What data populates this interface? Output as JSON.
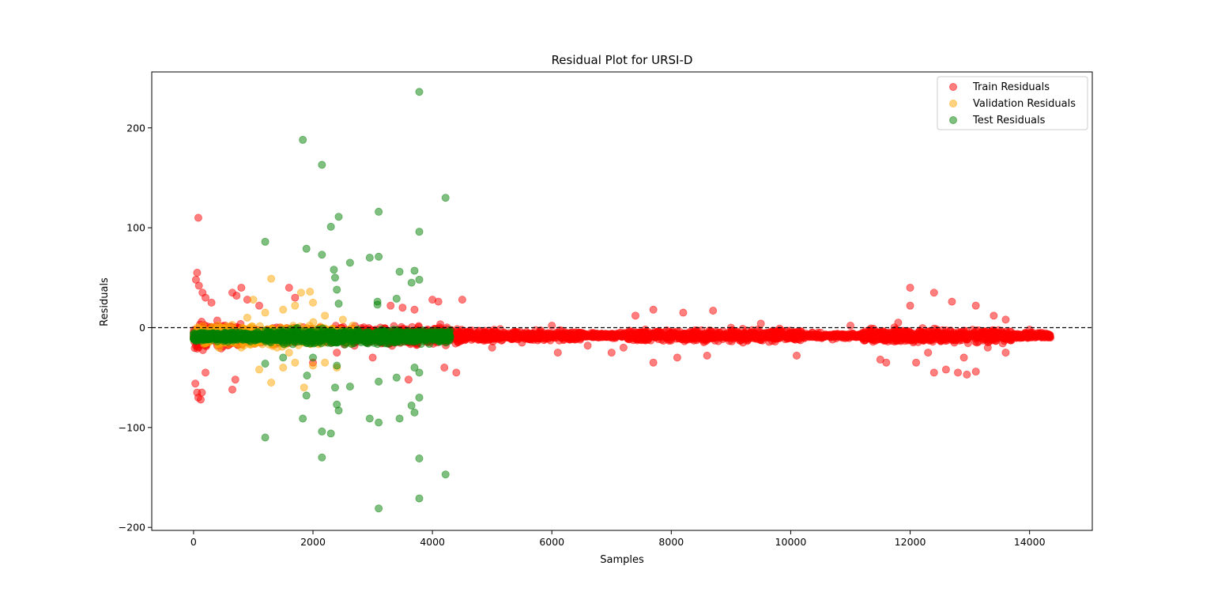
{
  "chart_data": {
    "type": "scatter",
    "title": "Residual Plot for URSI-D",
    "xlabel": "Samples",
    "ylabel": "Residuals",
    "xlim": [
      -700,
      15050
    ],
    "ylim": [
      -203,
      256
    ],
    "xticks": [
      0,
      2000,
      4000,
      6000,
      8000,
      10000,
      12000,
      14000
    ],
    "yticks": [
      -200,
      -100,
      0,
      100,
      200
    ],
    "xtick_labels": [
      "0",
      "2000",
      "4000",
      "6000",
      "8000",
      "10000",
      "12000",
      "14000"
    ],
    "ytick_labels": [
      "−200",
      "−100",
      "0",
      "100",
      "200"
    ],
    "reference_line": {
      "y": 0,
      "style": "dashed",
      "color": "#000000"
    },
    "grid": false,
    "legend": {
      "placement": "top-right",
      "entries": [
        "Train Residuals",
        "Validation Residuals",
        "Test Residuals"
      ]
    },
    "series": [
      {
        "name": "Train Residuals",
        "color": "#ff0000",
        "alpha": 0.5,
        "points": [
          [
            80,
            110
          ],
          [
            60,
            55
          ],
          [
            40,
            48
          ],
          [
            90,
            42
          ],
          [
            150,
            35
          ],
          [
            200,
            30
          ],
          [
            300,
            25
          ],
          [
            650,
            35
          ],
          [
            720,
            32
          ],
          [
            800,
            40
          ],
          [
            900,
            28
          ],
          [
            1100,
            22
          ],
          [
            1600,
            40
          ],
          [
            1700,
            30
          ],
          [
            3300,
            22
          ],
          [
            3500,
            20
          ],
          [
            3700,
            18
          ],
          [
            4000,
            28
          ],
          [
            4100,
            26
          ],
          [
            4500,
            28
          ],
          [
            7400,
            12
          ],
          [
            7700,
            18
          ],
          [
            8200,
            15
          ],
          [
            8700,
            17
          ],
          [
            12000,
            40
          ],
          [
            12400,
            35
          ],
          [
            12000,
            22
          ],
          [
            12700,
            26
          ],
          [
            13100,
            22
          ],
          [
            13400,
            12
          ],
          [
            13600,
            8
          ],
          [
            11800,
            5
          ],
          [
            11000,
            2
          ],
          [
            10500,
            -5
          ],
          [
            9500,
            4
          ],
          [
            9000,
            0
          ],
          [
            6100,
            -25
          ],
          [
            6600,
            -18
          ],
          [
            7000,
            -25
          ],
          [
            7700,
            -35
          ],
          [
            8100,
            -30
          ],
          [
            8600,
            -28
          ],
          [
            10100,
            -28
          ],
          [
            11500,
            -32
          ],
          [
            11600,
            -35
          ],
          [
            12100,
            -35
          ],
          [
            12400,
            -45
          ],
          [
            12600,
            -42
          ],
          [
            12800,
            -45
          ],
          [
            12950,
            -47
          ],
          [
            13100,
            -44
          ],
          [
            13600,
            -25
          ],
          [
            4400,
            -45
          ],
          [
            3600,
            -52
          ],
          [
            700,
            -52
          ],
          [
            650,
            -62
          ],
          [
            60,
            -65
          ],
          [
            80,
            -70
          ],
          [
            140,
            -65
          ],
          [
            120,
            -72
          ],
          [
            30,
            -56
          ],
          [
            200,
            -45
          ],
          [
            2000,
            -35
          ],
          [
            2400,
            -25
          ],
          [
            3000,
            -30
          ],
          [
            4200,
            -40
          ],
          [
            5000,
            -20
          ],
          [
            5500,
            -15
          ],
          [
            6000,
            2
          ],
          [
            6300,
            -12
          ],
          [
            7200,
            -20
          ],
          [
            9200,
            -15
          ],
          [
            10700,
            -12
          ],
          [
            12300,
            -25
          ],
          [
            12900,
            -30
          ],
          [
            13300,
            -20
          ],
          [
            14000,
            -2
          ],
          [
            14200,
            -5
          ],
          [
            14300,
            -8
          ],
          [
            14350,
            -10
          ]
        ]
      },
      {
        "name": "Validation Residuals",
        "color": "#ffa500",
        "alpha": 0.5,
        "points": [
          [
            1300,
            49
          ],
          [
            1800,
            35
          ],
          [
            1950,
            36
          ],
          [
            2000,
            25
          ],
          [
            1700,
            22
          ],
          [
            1500,
            18
          ],
          [
            1000,
            28
          ],
          [
            1200,
            15
          ],
          [
            900,
            10
          ],
          [
            2200,
            12
          ],
          [
            2500,
            8
          ],
          [
            1850,
            -60
          ],
          [
            1300,
            -55
          ],
          [
            1100,
            -42
          ],
          [
            1500,
            -40
          ],
          [
            1700,
            -35
          ],
          [
            2000,
            -38
          ],
          [
            2200,
            -35
          ],
          [
            2400,
            -40
          ],
          [
            1400,
            -20
          ],
          [
            1600,
            -25
          ],
          [
            800,
            -20
          ]
        ]
      },
      {
        "name": "Test Residuals",
        "color": "#008000",
        "alpha": 0.5,
        "points": [
          [
            3780,
            236
          ],
          [
            1830,
            188
          ],
          [
            2150,
            163
          ],
          [
            4220,
            130
          ],
          [
            3100,
            116
          ],
          [
            2430,
            111
          ],
          [
            2300,
            101
          ],
          [
            3780,
            96
          ],
          [
            1200,
            86
          ],
          [
            1890,
            79
          ],
          [
            2150,
            73
          ],
          [
            3100,
            71
          ],
          [
            2950,
            70
          ],
          [
            2620,
            65
          ],
          [
            2350,
            58
          ],
          [
            3450,
            56
          ],
          [
            3700,
            57
          ],
          [
            2370,
            50
          ],
          [
            3780,
            48
          ],
          [
            3650,
            45
          ],
          [
            2400,
            38
          ],
          [
            3400,
            29
          ],
          [
            2430,
            24
          ],
          [
            3080,
            23
          ],
          [
            3080,
            26
          ],
          [
            1200,
            -110
          ],
          [
            2150,
            -104
          ],
          [
            2300,
            -106
          ],
          [
            2150,
            -130
          ],
          [
            3780,
            -131
          ],
          [
            4220,
            -147
          ],
          [
            3780,
            -171
          ],
          [
            3100,
            -181
          ],
          [
            1830,
            -91
          ],
          [
            2950,
            -91
          ],
          [
            3100,
            -95
          ],
          [
            3450,
            -91
          ],
          [
            2430,
            -83
          ],
          [
            2400,
            -77
          ],
          [
            3650,
            -78
          ],
          [
            3700,
            -85
          ],
          [
            3780,
            -70
          ],
          [
            1890,
            -68
          ],
          [
            2370,
            -60
          ],
          [
            2620,
            -59
          ],
          [
            3100,
            -54
          ],
          [
            3400,
            -50
          ],
          [
            3780,
            -45
          ],
          [
            3700,
            -40
          ],
          [
            2400,
            -38
          ],
          [
            1900,
            -48
          ],
          [
            1200,
            -36
          ],
          [
            1500,
            -30
          ],
          [
            2000,
            -30
          ]
        ]
      }
    ]
  }
}
